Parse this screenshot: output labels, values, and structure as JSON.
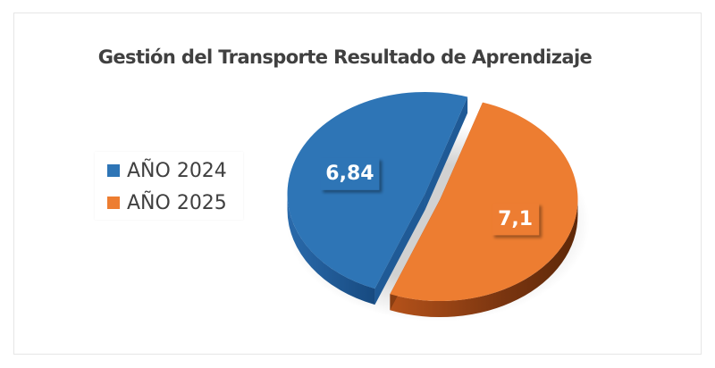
{
  "chart_data": {
    "type": "pie",
    "title": "Gestión del Transporte Resultado de Aprendizaje",
    "categories": [
      "AÑO 2024",
      "AÑO 2025"
    ],
    "values": [
      6.84,
      7.1
    ],
    "value_labels": [
      "6,84",
      "7,1"
    ],
    "colors": [
      "#2e75b6",
      "#ed7d31"
    ],
    "side_colors": [
      "#1f5a96",
      "#8a3e12"
    ],
    "legend_position": "left",
    "style": "3d-exploded"
  }
}
